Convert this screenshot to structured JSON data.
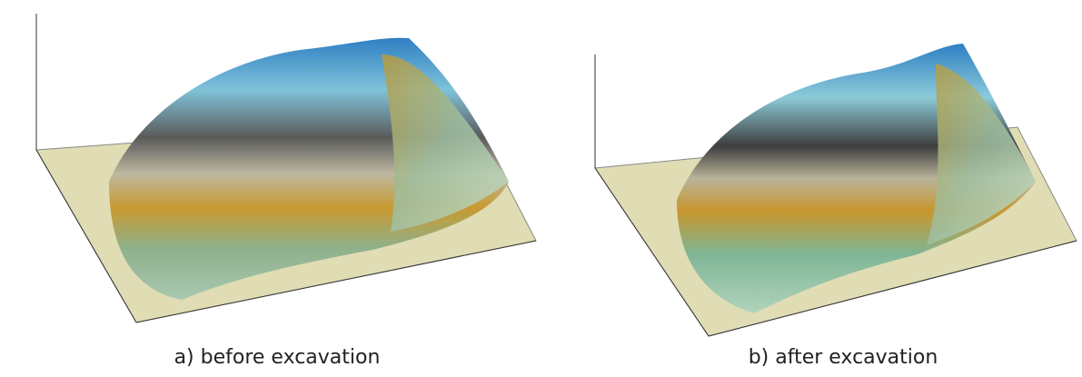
{
  "panels": [
    {
      "caption": "a) before excavation"
    },
    {
      "caption": "b) after excavation"
    }
  ]
}
